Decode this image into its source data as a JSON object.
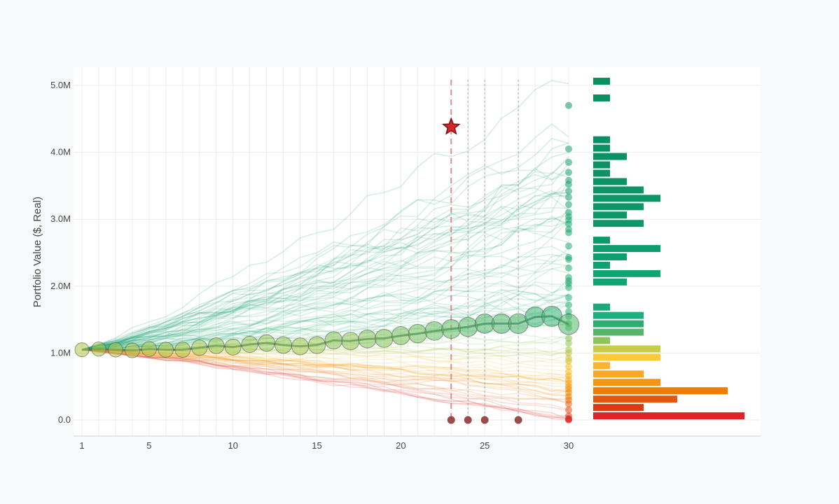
{
  "chart_data": {
    "type": "line",
    "title": "",
    "xlabel": "",
    "ylabel": "Portfolio Value ($, Real)",
    "xlim": [
      0.5,
      31
    ],
    "ylim": [
      -0.25,
      5.25
    ],
    "x_ticks": [
      1,
      5,
      10,
      15,
      20,
      25,
      30
    ],
    "y_ticks": [
      0,
      1,
      2,
      3,
      4,
      5
    ],
    "y_tick_labels": [
      "0.0",
      "1.0M",
      "2.0M",
      "3.0M",
      "4.0M",
      "5.0M"
    ],
    "grid": true,
    "median_series": {
      "x": [
        1,
        2,
        3,
        4,
        5,
        6,
        7,
        8,
        9,
        10,
        11,
        12,
        13,
        14,
        15,
        16,
        17,
        18,
        19,
        20,
        21,
        22,
        23,
        24,
        25,
        26,
        27,
        28,
        29,
        30
      ],
      "values": [
        1.05,
        1.06,
        1.05,
        1.04,
        1.06,
        1.05,
        1.05,
        1.08,
        1.11,
        1.09,
        1.13,
        1.15,
        1.12,
        1.1,
        1.12,
        1.19,
        1.18,
        1.21,
        1.22,
        1.26,
        1.29,
        1.33,
        1.36,
        1.39,
        1.44,
        1.44,
        1.44,
        1.54,
        1.55,
        1.43
      ],
      "color": "#3d6e5a"
    },
    "depletion_events": {
      "x": [
        23,
        24,
        25,
        27
      ],
      "values": [
        0,
        0,
        0,
        0
      ],
      "color": "#8b2e2e"
    },
    "max_marker": {
      "x": 23,
      "value": 4.38,
      "color": "#d62828"
    },
    "final_values": [
      4.7,
      4.05,
      3.85,
      3.7,
      3.58,
      3.52,
      3.42,
      3.33,
      3.22,
      3.1,
      3.04,
      2.99,
      2.93,
      2.85,
      2.8,
      2.6,
      2.43,
      2.4,
      2.27,
      2.13,
      2.08,
      2.04,
      1.98,
      1.83,
      1.72,
      1.62,
      1.55,
      1.44,
      1.38,
      1.22,
      1.15,
      1.05,
      1.0,
      0.92,
      0.88,
      0.8,
      0.72,
      0.66,
      0.6,
      0.55,
      0.5,
      0.46,
      0.41,
      0.35,
      0.3,
      0.24,
      0.15,
      0.06,
      0.02,
      0.01,
      0.0
    ],
    "histogram": {
      "bin_width": 0.125,
      "bins": [
        {
          "start": 0.0,
          "count": 9,
          "color": "#dc2626"
        },
        {
          "start": 0.125,
          "count": 3,
          "color": "#dc3b12"
        },
        {
          "start": 0.25,
          "count": 5,
          "color": "#e8560c"
        },
        {
          "start": 0.375,
          "count": 8,
          "color": "#f07d00"
        },
        {
          "start": 0.5,
          "count": 4,
          "color": "#f5950f"
        },
        {
          "start": 0.625,
          "count": 3,
          "color": "#f9a825"
        },
        {
          "start": 0.75,
          "count": 1,
          "color": "#fbb42c"
        },
        {
          "start": 0.875,
          "count": 4,
          "color": "#fcc93a"
        },
        {
          "start": 1.0,
          "count": 4,
          "color": "#c7cc4a"
        },
        {
          "start": 1.125,
          "count": 1,
          "color": "#8fc45a"
        },
        {
          "start": 1.25,
          "count": 3,
          "color": "#55b56a"
        },
        {
          "start": 1.375,
          "count": 3,
          "color": "#2cae73"
        },
        {
          "start": 1.5,
          "count": 3,
          "color": "#1cb07d"
        },
        {
          "start": 1.625,
          "count": 1,
          "color": "#17a97a"
        },
        {
          "start": 2.0,
          "count": 2,
          "color": "#10a574"
        },
        {
          "start": 2.125,
          "count": 4,
          "color": "#0fa472"
        },
        {
          "start": 2.25,
          "count": 1,
          "color": "#0ea070"
        },
        {
          "start": 2.375,
          "count": 2,
          "color": "#0e9e6e"
        },
        {
          "start": 2.5,
          "count": 4,
          "color": "#0e9c6c"
        },
        {
          "start": 2.625,
          "count": 1,
          "color": "#0d9a6b"
        },
        {
          "start": 2.875,
          "count": 3,
          "color": "#0c986a"
        },
        {
          "start": 3.0,
          "count": 2,
          "color": "#0c9769"
        },
        {
          "start": 3.125,
          "count": 3,
          "color": "#0b9668"
        },
        {
          "start": 3.25,
          "count": 4,
          "color": "#0b9567"
        },
        {
          "start": 3.375,
          "count": 3,
          "color": "#0b9466"
        },
        {
          "start": 3.5,
          "count": 2,
          "color": "#0b9366"
        },
        {
          "start": 3.625,
          "count": 1,
          "color": "#0a9265"
        },
        {
          "start": 3.75,
          "count": 1,
          "color": "#0a9265"
        },
        {
          "start": 3.875,
          "count": 2,
          "color": "#0a9164"
        },
        {
          "start": 4.0,
          "count": 1,
          "color": "#0a9164"
        },
        {
          "start": 4.125,
          "count": 1,
          "color": "#0a9064"
        },
        {
          "start": 4.75,
          "count": 1,
          "color": "#09905f"
        },
        {
          "start": 5.0,
          "count": 1,
          "color": "#09905f"
        }
      ]
    },
    "vertical_markers": [
      {
        "x": 23,
        "color": "#e07070",
        "style": "dashed"
      },
      {
        "x": 24,
        "color": "#999999",
        "style": "dotted"
      },
      {
        "x": 25,
        "color": "#999999",
        "style": "dotted"
      },
      {
        "x": 27,
        "color": "#999999",
        "style": "dotted"
      }
    ],
    "num_simulated_paths": 100
  }
}
